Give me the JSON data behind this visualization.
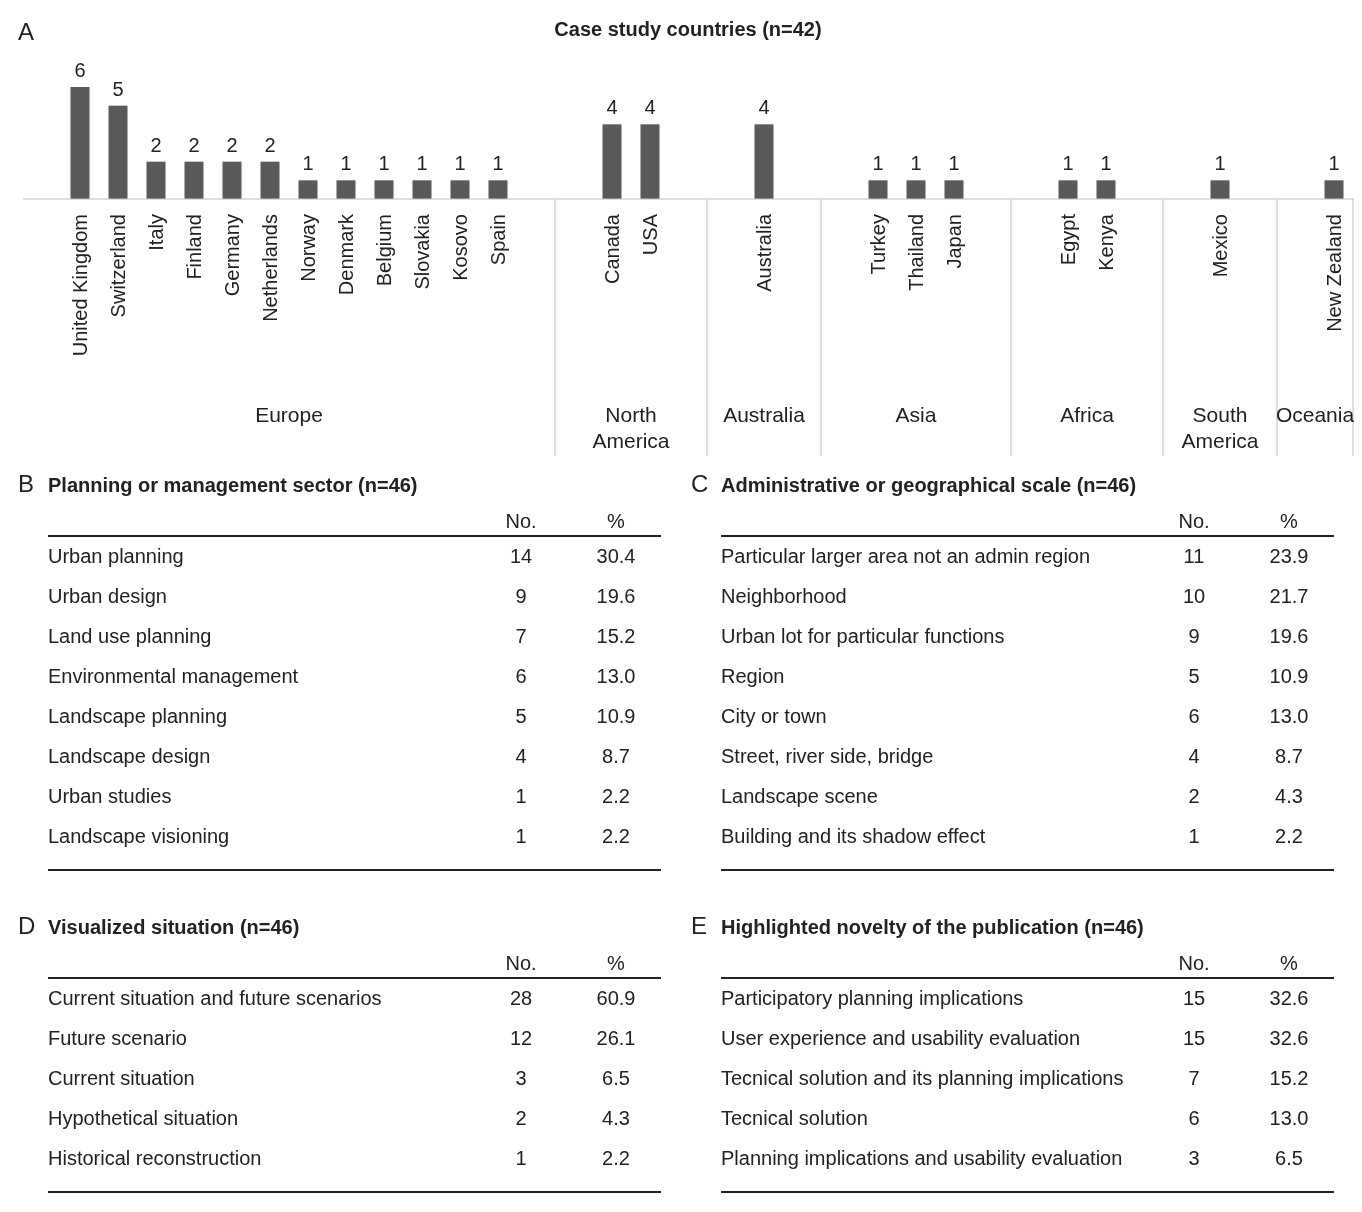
{
  "chart_data": [
    {
      "type": "bar",
      "title": "Case study countries (n=42)",
      "categories": [
        "United Kingdom",
        "Switzerland",
        "Italy",
        "Finland",
        "Germany",
        "Netherlands",
        "Norway",
        "Denmark",
        "Belgium",
        "Slovakia",
        "Kosovo",
        "Spain",
        null,
        null,
        "Canada",
        "USA",
        null,
        null,
        "Australia",
        null,
        null,
        "Turkey",
        "Thailand",
        "Japan",
        null,
        null,
        "Egypt",
        "Kenya",
        null,
        null,
        "Mexico",
        null,
        null,
        "New Zealand"
      ],
      "values": [
        6,
        5,
        2,
        2,
        2,
        2,
        1,
        1,
        1,
        1,
        1,
        1,
        null,
        null,
        4,
        4,
        null,
        null,
        4,
        null,
        null,
        1,
        1,
        1,
        null,
        null,
        1,
        1,
        null,
        null,
        1,
        null,
        null,
        1
      ],
      "color": "#595959",
      "data_labels": true,
      "annotations": [
        "A",
        "Europe",
        "North America",
        "Australia",
        "Asia",
        "Africa",
        "South America",
        "Oceania"
      ]
    },
    {
      "type": "other",
      "title": "Planning or management sector (n=46)",
      "annotations": [
        "B"
      ],
      "data_labels": true,
      "categories": [
        "Urban planning",
        "Urban design",
        "Land use planning",
        "Environmental management",
        "Landscape planning",
        "Landscape design",
        "Urban studies",
        "Landscape visioning"
      ],
      "series": [
        {
          "name": "No.",
          "values": [
            14,
            9,
            7,
            6,
            5,
            4,
            1,
            1
          ]
        },
        {
          "name": "%",
          "values": [
            30.4,
            19.6,
            15.2,
            13.0,
            10.9,
            8.7,
            2.2,
            2.2
          ],
          "value_labels": [
            "30.4",
            "19.6",
            "15.2",
            "13.0",
            "10.9",
            "8.7",
            "2.2",
            "2.2"
          ]
        }
      ]
    },
    {
      "type": "other",
      "title": "Administrative or geographical scale (n=46)",
      "annotations": [
        "C"
      ],
      "data_labels": true,
      "categories": [
        "Particular larger area not an admin region",
        "Neighborhood",
        "Urban lot for particular functions",
        "Region",
        "City or town",
        "Street, river side, bridge",
        "Landscape scene",
        "Building and its shadow effect"
      ],
      "series": [
        {
          "name": "No.",
          "values": [
            11,
            10,
            9,
            5,
            6,
            4,
            2,
            1
          ]
        },
        {
          "name": "%",
          "values": [
            23.9,
            21.7,
            19.6,
            10.9,
            13.0,
            8.7,
            4.3,
            2.2
          ],
          "value_labels": [
            "23.9",
            "21.7",
            "19.6",
            "10.9",
            "13.0",
            "8.7",
            "4.3",
            "2.2"
          ]
        }
      ]
    },
    {
      "type": "other",
      "title": "Visualized situation (n=46)",
      "annotations": [
        "D"
      ],
      "data_labels": true,
      "categories": [
        "Current situation and future scenarios",
        "Future scenario",
        "Current situation",
        "Hypothetical situation",
        "Historical reconstruction"
      ],
      "series": [
        {
          "name": "No.",
          "values": [
            28,
            12,
            3,
            2,
            1
          ]
        },
        {
          "name": "%",
          "values": [
            60.9,
            26.1,
            6.5,
            4.3,
            2.2
          ],
          "value_labels": [
            "60.9",
            "26.1",
            "6.5",
            "4.3",
            "2.2"
          ]
        }
      ]
    },
    {
      "type": "other",
      "title": "Highlighted novelty of the publication (n=46)",
      "annotations": [
        "E"
      ],
      "data_labels": true,
      "categories": [
        "Participatory planning implications",
        "User experience and usability evaluation",
        "Tecnical solution and its planning implications",
        "Tecnical solution",
        "Planning implications and usability evaluation"
      ],
      "series": [
        {
          "name": "No.",
          "values": [
            15,
            15,
            7,
            6,
            3
          ]
        },
        {
          "name": "%",
          "values": [
            32.6,
            32.6,
            15.2,
            13.0,
            6.5
          ],
          "value_labels": [
            "32.6",
            "32.6",
            "15.2",
            "13.0",
            "6.5"
          ]
        }
      ]
    }
  ]
}
